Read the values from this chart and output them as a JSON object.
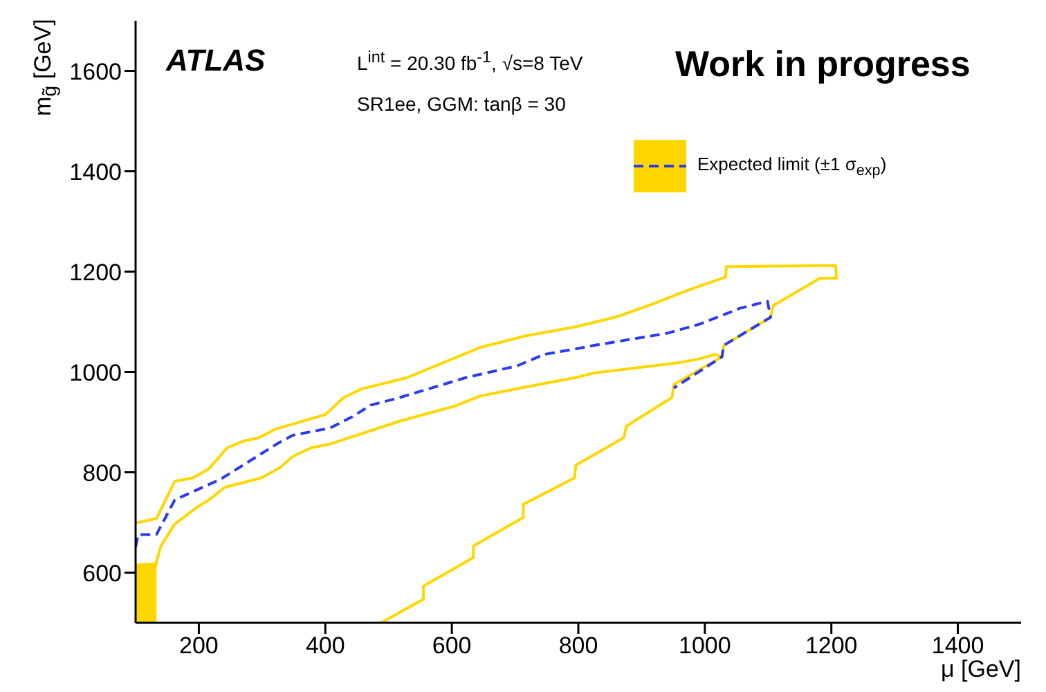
{
  "chart_data": {
    "type": "line",
    "xlabel": "μ [GeV]",
    "ylabel": "m$_{g̃}$ [GeV]",
    "annotations": [
      "ATLAS",
      "L$^{int}$ = 20.30 fb$^{-1}$,  √s=8 TeV",
      "SR1ee, GGM: tanβ = 30",
      "Work in progress"
    ],
    "xlim": [
      100,
      1500
    ],
    "xticks": [
      200,
      400,
      600,
      800,
      1000,
      1200,
      1400
    ],
    "ylim": [
      500,
      1700
    ],
    "yticks": [
      600,
      800,
      1000,
      1200,
      1400,
      1600
    ],
    "grid": false,
    "legend": "top right",
    "marker": "none",
    "series": [
      {
        "type": "area",
        "color": "#ffd700",
        "x": [
          100,
          115,
          133
        ],
        "values": [
          618,
          619,
          621
        ]
      },
      {
        "color": "#ffd700",
        "line_style": "solid",
        "x": [
          100,
          133,
          162,
          191,
          216,
          245,
          270,
          295,
          321,
          400,
          429,
          457,
          530,
          645,
          717,
          796,
          861,
          919,
          969,
          1033,
          1034,
          1207,
          1208,
          1182,
          1108,
          1104,
          1030,
          1027,
          951,
          948,
          876,
          872,
          796,
          794,
          713,
          713,
          634,
          634,
          555,
          555,
          488
        ],
        "values": [
          699,
          708,
          782,
          789,
          807,
          849,
          862,
          869,
          886,
          915,
          949,
          966,
          989,
          1049,
          1072,
          1090,
          1110,
          1136,
          1161,
          1189,
          1210,
          1212,
          1187,
          1187,
          1132,
          1109,
          1053,
          1030,
          975,
          949,
          892,
          869,
          814,
          789,
          736,
          710,
          653,
          630,
          573,
          547,
          500
        ]
      },
      {
        "color": "#ffd700",
        "line_style": "solid",
        "x": [
          115,
          133,
          140,
          162,
          198,
          216,
          241,
          299,
          328,
          349,
          378,
          407,
          515,
          602,
          645,
          717,
          796,
          825,
          962,
          991,
          1016,
          1027
        ],
        "values": [
          500,
          621,
          653,
          697,
          731,
          745,
          770,
          789,
          809,
          832,
          849,
          856,
          901,
          931,
          952,
          970,
          989,
          998,
          1019,
          1026,
          1035,
          1030
        ]
      },
      {
        "name": "Expected limit (±1 σ$_{exp}$)",
        "color": "#2b3bf0",
        "line_style": "dashed",
        "x": [
          100,
          104,
          133,
          162,
          234,
          328,
          349,
          407,
          443,
          472,
          515,
          623,
          703,
          746,
          796,
          825,
          940,
          991,
          1056,
          1099,
          1104,
          1030,
          1027,
          951
        ],
        "values": [
          651,
          676,
          676,
          745,
          786,
          860,
          874,
          888,
          911,
          934,
          948,
          989,
          1012,
          1035,
          1046,
          1053,
          1077,
          1095,
          1127,
          1141,
          1109,
          1053,
          1030,
          968
        ]
      }
    ]
  }
}
